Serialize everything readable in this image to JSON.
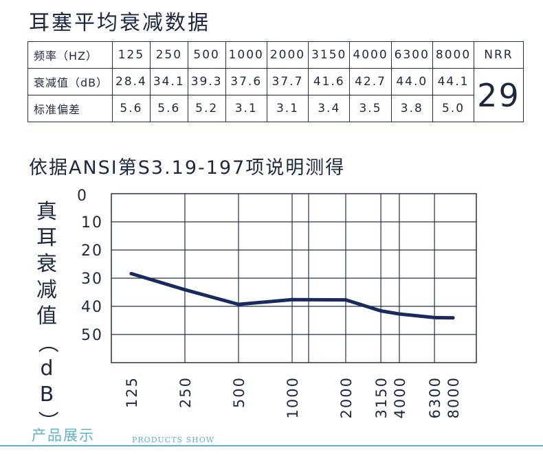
{
  "title": "耳塞平均衰减数据",
  "table": {
    "row_labels": [
      "频率（HZ）",
      "衰减值（dB）",
      "标准偏差"
    ],
    "frequencies": [
      "125",
      "250",
      "500",
      "1000",
      "2000",
      "3150",
      "4000",
      "6300",
      "8000"
    ],
    "attenuation": [
      "28.4",
      "34.1",
      "39.3",
      "37.6",
      "37.7",
      "41.6",
      "42.7",
      "44.0",
      "44.1"
    ],
    "std_dev": [
      "5.6",
      "5.6",
      "5.2",
      "3.1",
      "3.1",
      "3.4",
      "3.5",
      "3.8",
      "5.0"
    ],
    "nrr_label": "NRR",
    "nrr_value": "29"
  },
  "subtitle": "依据ANSI第S3.19-197项说明测得",
  "chart_data": {
    "type": "line",
    "ylabel": "真耳衰减值（dB）",
    "y_ticks": [
      "0",
      "10",
      "20",
      "30",
      "40",
      "50"
    ],
    "ylim": [
      0,
      60
    ],
    "y_inverted": true,
    "x_ticks": [
      "125",
      "250",
      "500",
      "1000",
      "2000",
      "3150",
      "4000",
      "6300",
      "8000"
    ],
    "x_scale": "log",
    "grid": true,
    "series": [
      {
        "x": [
          125,
          250,
          500,
          1000,
          2000,
          3150,
          4000,
          6300,
          8000
        ],
        "values": [
          28.4,
          34.1,
          39.3,
          37.6,
          37.7,
          41.6,
          42.7,
          44.0,
          44.1
        ]
      }
    ],
    "line_color": "#1a2a5c",
    "grid_color": "#23304e"
  },
  "footer": {
    "cn": "产品展示",
    "en": "PRODUCTS SHOW"
  },
  "colors": {
    "text": "#1c2740",
    "accent": "#5fb3c9"
  }
}
